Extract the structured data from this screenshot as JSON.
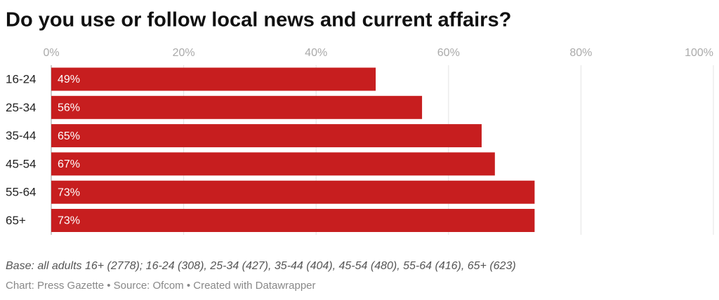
{
  "chart_data": {
    "type": "bar",
    "orientation": "horizontal",
    "title": "Do you use or follow local news and current affairs?",
    "categories": [
      "16-24",
      "25-34",
      "35-44",
      "45-54",
      "55-64",
      "65+"
    ],
    "values": [
      49,
      56,
      65,
      67,
      73,
      73
    ],
    "value_labels": [
      "49%",
      "56%",
      "65%",
      "67%",
      "73%",
      "73%"
    ],
    "color": "#c71e1f",
    "xlim": [
      0,
      100
    ],
    "xticks": [
      {
        "value": 0,
        "label": "0%"
      },
      {
        "value": 20,
        "label": "20%"
      },
      {
        "value": 40,
        "label": "40%"
      },
      {
        "value": 60,
        "label": "60%"
      },
      {
        "value": 80,
        "label": "80%"
      },
      {
        "value": 100,
        "label": "100%"
      }
    ],
    "grid": true,
    "note": "Base: all adults 16+ (2778); 16-24 (308), 25-34 (427), 35-44 (404), 45-54 (480), 55-64 (416), 65+ (623)",
    "footer": "Chart: Press Gazette • Source: Ofcom • Created with Datawrapper"
  }
}
